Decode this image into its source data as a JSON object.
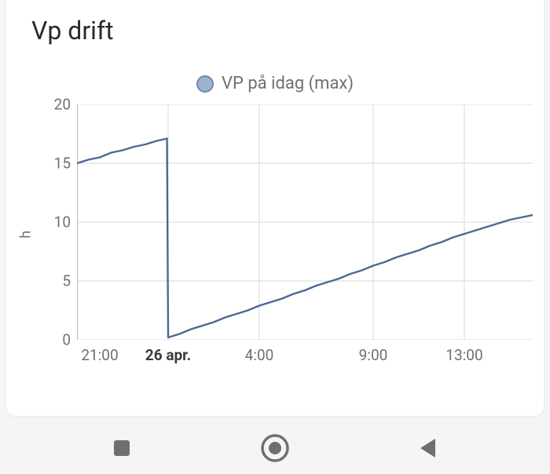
{
  "card": {
    "title": "Vp drift",
    "background_color": "#ffffff"
  },
  "legend": {
    "label": "VP på idag (max)",
    "marker_fill": "#9db4cd",
    "marker_stroke": "#6f88a6",
    "label_color": "#707070",
    "label_fontsize": 22
  },
  "chart": {
    "type": "line",
    "ylabel": "h",
    "ylim": [
      0,
      20
    ],
    "yticks": [
      0,
      5,
      10,
      15,
      20
    ],
    "xticks": [
      {
        "t": 21,
        "label": "21:00",
        "bold": false
      },
      {
        "t": 24,
        "label": "26 apr.",
        "bold": true
      },
      {
        "t": 28,
        "label": "4:00",
        "bold": false
      },
      {
        "t": 33,
        "label": "9:00",
        "bold": false
      },
      {
        "t": 37,
        "label": "13:00",
        "bold": false
      }
    ],
    "x_range": [
      20,
      40
    ],
    "x_gridlines": [
      24,
      28,
      33,
      37
    ],
    "line_color": "#4a6995",
    "line_width": 2.4,
    "grid_color": "#d8d8d8",
    "axis_color": "#bcbcbc",
    "tick_color": "#707070",
    "series": [
      {
        "t": 20.0,
        "y": 15.0
      },
      {
        "t": 20.5,
        "y": 15.3
      },
      {
        "t": 21.0,
        "y": 15.5
      },
      {
        "t": 21.5,
        "y": 15.9
      },
      {
        "t": 22.0,
        "y": 16.1
      },
      {
        "t": 22.5,
        "y": 16.4
      },
      {
        "t": 23.0,
        "y": 16.6
      },
      {
        "t": 23.5,
        "y": 16.9
      },
      {
        "t": 23.95,
        "y": 17.1
      },
      {
        "t": 24.0,
        "y": 0.2
      },
      {
        "t": 24.5,
        "y": 0.5
      },
      {
        "t": 25.0,
        "y": 0.9
      },
      {
        "t": 25.5,
        "y": 1.2
      },
      {
        "t": 26.0,
        "y": 1.5
      },
      {
        "t": 26.5,
        "y": 1.9
      },
      {
        "t": 27.0,
        "y": 2.2
      },
      {
        "t": 27.5,
        "y": 2.5
      },
      {
        "t": 28.0,
        "y": 2.9
      },
      {
        "t": 28.5,
        "y": 3.2
      },
      {
        "t": 29.0,
        "y": 3.5
      },
      {
        "t": 29.5,
        "y": 3.9
      },
      {
        "t": 30.0,
        "y": 4.2
      },
      {
        "t": 30.5,
        "y": 4.6
      },
      {
        "t": 31.0,
        "y": 4.9
      },
      {
        "t": 31.5,
        "y": 5.2
      },
      {
        "t": 32.0,
        "y": 5.6
      },
      {
        "t": 32.5,
        "y": 5.9
      },
      {
        "t": 33.0,
        "y": 6.3
      },
      {
        "t": 33.5,
        "y": 6.6
      },
      {
        "t": 34.0,
        "y": 7.0
      },
      {
        "t": 34.5,
        "y": 7.3
      },
      {
        "t": 35.0,
        "y": 7.6
      },
      {
        "t": 35.5,
        "y": 8.0
      },
      {
        "t": 36.0,
        "y": 8.3
      },
      {
        "t": 36.5,
        "y": 8.7
      },
      {
        "t": 37.0,
        "y": 9.0
      },
      {
        "t": 37.5,
        "y": 9.3
      },
      {
        "t": 38.0,
        "y": 9.6
      },
      {
        "t": 38.5,
        "y": 9.9
      },
      {
        "t": 39.0,
        "y": 10.2
      },
      {
        "t": 39.5,
        "y": 10.4
      },
      {
        "t": 40.0,
        "y": 10.6
      }
    ]
  },
  "nav": {
    "icon_color": "#6f6f6f"
  }
}
